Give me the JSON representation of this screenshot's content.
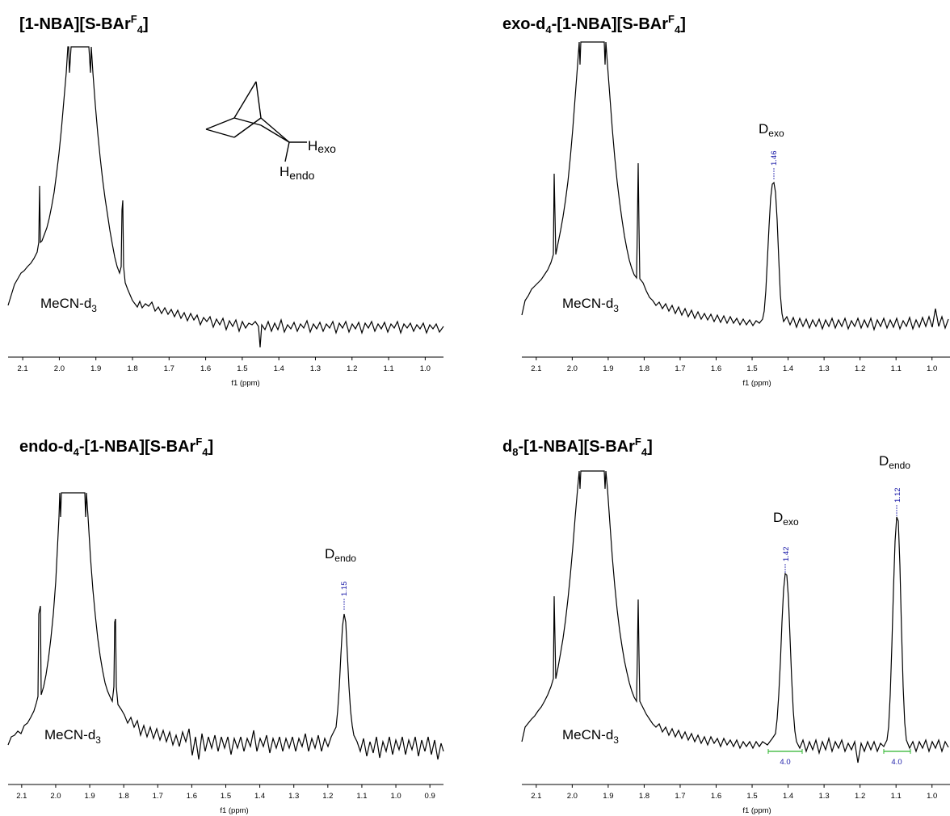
{
  "chart_data": [
    {
      "type": "line",
      "title": "[1-NBA][S-BAr",
      "title_sup": "F",
      "title_sub": "4",
      "title_tail": "]",
      "xlabel": "f1 (ppm)",
      "xlim": [
        2.14,
        0.95
      ],
      "xlim_reversed": true,
      "x_ticks": [
        "2.1",
        "2.0",
        "1.9",
        "1.8",
        "1.7",
        "1.6",
        "1.5",
        "1.4",
        "1.3",
        "1.2",
        "1.1",
        "1.0"
      ],
      "solvent_label": "MeCN-d",
      "solvent_sub": "3",
      "structure_labels": [
        "H",
        "exo",
        "H",
        "endo"
      ],
      "peaks": [],
      "series": [
        {
          "x": [
            2.14,
            2.06,
            1.95,
            1.92,
            1.89,
            1.83,
            1.7,
            1.45,
            1.2,
            0.95
          ],
          "y": [
            0.06,
            0.3,
            1.1,
            1.1,
            0.5,
            0.28,
            0.04,
            -0.06,
            0.0,
            0.0
          ]
        }
      ]
    },
    {
      "type": "line",
      "title": "exo-d",
      "title_sub1": "4",
      "title_mid": "-[1-NBA][S-BAr",
      "title_sup": "F",
      "title_sub": "4",
      "title_tail": "]",
      "xlabel": "f1 (ppm)",
      "xlim": [
        2.14,
        0.95
      ],
      "xlim_reversed": true,
      "x_ticks": [
        "2.1",
        "2.0",
        "1.9",
        "1.8",
        "1.7",
        "1.6",
        "1.5",
        "1.4",
        "1.3",
        "1.2",
        "1.1",
        "1.0"
      ],
      "solvent_label": "MeCN-d",
      "solvent_sub": "3",
      "peaks": [
        {
          "label": "D",
          "label_sub": "exo",
          "value": "1.46",
          "x": 1.46
        }
      ],
      "series": [
        {
          "x": [
            2.14,
            2.06,
            1.95,
            1.92,
            1.89,
            1.83,
            1.7,
            1.46,
            1.2,
            0.95
          ],
          "y": [
            0.05,
            0.45,
            1.1,
            1.1,
            0.5,
            0.43,
            0.04,
            0.4,
            0.0,
            0.0
          ]
        }
      ]
    },
    {
      "type": "line",
      "title": "endo-d",
      "title_sub1": "4",
      "title_mid": "-[1-NBA][S-BAr",
      "title_sup": "F",
      "title_sub": "4",
      "title_tail": "]",
      "xlabel": "f1 (ppm)",
      "xlim": [
        2.14,
        0.86
      ],
      "xlim_reversed": true,
      "x_ticks": [
        "2.1",
        "2.0",
        "1.9",
        "1.8",
        "1.7",
        "1.6",
        "1.5",
        "1.4",
        "1.3",
        "1.2",
        "1.1",
        "1.0",
        "0.9"
      ],
      "solvent_label": "MeCN-d",
      "solvent_sub": "3",
      "peaks": [
        {
          "label": "D",
          "label_sub": "endo",
          "value": "1.15",
          "x": 1.15
        }
      ],
      "series": [
        {
          "x": [
            2.14,
            2.06,
            1.95,
            1.92,
            1.89,
            1.83,
            1.7,
            1.15,
            1.0,
            0.86
          ],
          "y": [
            0.05,
            0.45,
            1.1,
            1.1,
            0.5,
            0.4,
            0.04,
            0.4,
            0.0,
            0.0
          ]
        }
      ]
    },
    {
      "type": "line",
      "title": "d",
      "title_sub1": "8",
      "title_mid": "-[1-NBA][S-BAr",
      "title_sup": "F",
      "title_sub": "4",
      "title_tail": "]",
      "xlabel": "f1 (ppm)",
      "xlim": [
        2.14,
        0.95
      ],
      "xlim_reversed": true,
      "x_ticks": [
        "2.1",
        "2.0",
        "1.9",
        "1.8",
        "1.7",
        "1.6",
        "1.5",
        "1.4",
        "1.3",
        "1.2",
        "1.1",
        "1.0"
      ],
      "solvent_label": "MeCN-d",
      "solvent_sub": "3",
      "peaks": [
        {
          "label": "D",
          "label_sub": "exo",
          "value": "1.42",
          "x": 1.42,
          "integral": "4.0"
        },
        {
          "label": "D",
          "label_sub": "endo",
          "value": "1.12",
          "x": 1.12,
          "integral": "4.0"
        }
      ],
      "series": [
        {
          "x": [
            2.14,
            2.06,
            1.95,
            1.92,
            1.89,
            1.83,
            1.7,
            1.42,
            1.12,
            0.95
          ],
          "y": [
            0.04,
            0.35,
            1.1,
            1.1,
            0.5,
            0.32,
            0.03,
            0.47,
            0.62,
            0.0
          ]
        }
      ]
    }
  ]
}
